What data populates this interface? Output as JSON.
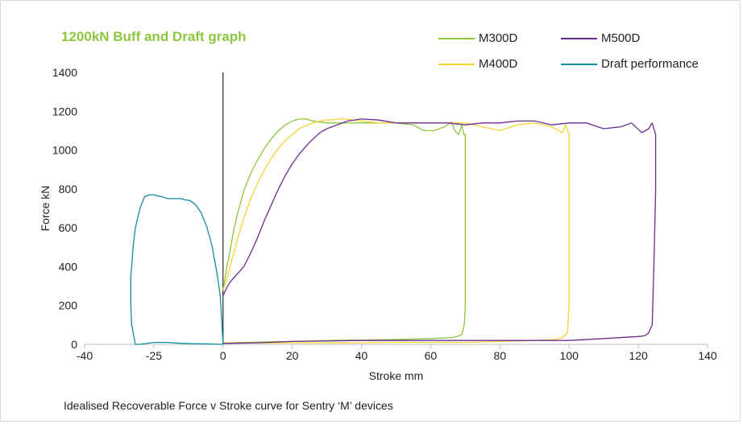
{
  "chart_data": {
    "type": "line",
    "title": "1200kN Buff and Draft graph",
    "caption": "Idealised Recoverable Force v Stroke curve for Sentry ‘M’ devices",
    "xlabel": "Stroke mm",
    "ylabel": "Force kN",
    "xlim": [
      -40,
      140
    ],
    "ylim": [
      0,
      1400
    ],
    "x_ticks": [
      -40,
      -25,
      0,
      20,
      40,
      60,
      80,
      100,
      120,
      140
    ],
    "y_ticks": [
      0,
      200,
      400,
      600,
      800,
      1000,
      1200,
      1400
    ],
    "grid": false,
    "legend_position": "top-right",
    "series": [
      {
        "name": "M300D",
        "color": "#8cc63e",
        "x": [
          0,
          0.5,
          1,
          2,
          3,
          4,
          6,
          8,
          10,
          12,
          14,
          16,
          18,
          20,
          22,
          24,
          26,
          30,
          35,
          40,
          45,
          50,
          55,
          58,
          61,
          64,
          66,
          67,
          68,
          69,
          69.3,
          69.6,
          70,
          70,
          70,
          69.7,
          69,
          67.5,
          66,
          60,
          50,
          40,
          30,
          20,
          10,
          5,
          1,
          0
        ],
        "y": [
          280,
          330,
          390,
          480,
          580,
          660,
          790,
          880,
          950,
          1010,
          1060,
          1100,
          1130,
          1150,
          1160,
          1160,
          1150,
          1140,
          1140,
          1140,
          1140,
          1140,
          1130,
          1100,
          1100,
          1120,
          1145,
          1100,
          1080,
          1130,
          1100,
          1080,
          1080,
          800,
          200,
          100,
          50,
          40,
          35,
          30,
          25,
          22,
          20,
          15,
          12,
          10,
          8,
          8
        ]
      },
      {
        "name": "M400D",
        "color": "#f5d234",
        "x": [
          0,
          1,
          2,
          4,
          6,
          8,
          10,
          12,
          14,
          16,
          18,
          20,
          22,
          25,
          28,
          30,
          35,
          40,
          45,
          50,
          55,
          60,
          65,
          70,
          75,
          80,
          85,
          90,
          95,
          98,
          99,
          100,
          100,
          100,
          99.5,
          98,
          96,
          90,
          80,
          70,
          60,
          50,
          40,
          30,
          20,
          10,
          5,
          1,
          0
        ],
        "y": [
          280,
          330,
          400,
          530,
          650,
          750,
          830,
          900,
          960,
          1010,
          1050,
          1080,
          1110,
          1135,
          1150,
          1155,
          1160,
          1150,
          1140,
          1140,
          1140,
          1140,
          1140,
          1140,
          1120,
          1100,
          1130,
          1140,
          1120,
          1090,
          1130,
          1080,
          800,
          200,
          60,
          35,
          25,
          20,
          15,
          10,
          10,
          10,
          8,
          8,
          8,
          8,
          8,
          8,
          8
        ]
      },
      {
        "name": "M500D",
        "color": "#6b2c91",
        "x": [
          0,
          1,
          2,
          4,
          6,
          8,
          10,
          12,
          14,
          16,
          18,
          20,
          22,
          25,
          28,
          30,
          33,
          36,
          40,
          45,
          50,
          55,
          60,
          65,
          70,
          75,
          80,
          85,
          90,
          95,
          100,
          105,
          110,
          115,
          118,
          121,
          123,
          124,
          125,
          125,
          125,
          124.5,
          124,
          123,
          122,
          120,
          110,
          100,
          80,
          60,
          40,
          20,
          10,
          0
        ],
        "y": [
          250,
          290,
          320,
          360,
          400,
          470,
          550,
          640,
          720,
          800,
          870,
          930,
          980,
          1040,
          1090,
          1110,
          1130,
          1150,
          1160,
          1155,
          1140,
          1140,
          1140,
          1140,
          1130,
          1140,
          1140,
          1150,
          1150,
          1130,
          1140,
          1140,
          1110,
          1120,
          1140,
          1090,
          1110,
          1140,
          1080,
          1060,
          800,
          400,
          100,
          60,
          45,
          40,
          30,
          20,
          20,
          20,
          20,
          15,
          8,
          5
        ]
      },
      {
        "name": "Draft performance",
        "color": "#138d9e",
        "x": [
          0,
          -0.3,
          -0.6,
          -1,
          -2,
          -3,
          -4,
          -5,
          -6,
          -8,
          -10,
          -12,
          -14,
          -15,
          -18,
          -20,
          -22,
          -24,
          -25,
          -26,
          -27,
          -28,
          -29,
          -29.5,
          -29.8,
          -30,
          -30,
          -29.8,
          -29,
          -28,
          -25,
          -20,
          -15,
          -10,
          -5,
          0
        ],
        "y": [
          0,
          80,
          150,
          250,
          350,
          430,
          510,
          560,
          610,
          680,
          720,
          740,
          745,
          750,
          750,
          750,
          760,
          765,
          770,
          770,
          760,
          700,
          600,
          500,
          400,
          350,
          200,
          100,
          0,
          0,
          10,
          10,
          5,
          3,
          2,
          0
        ]
      }
    ]
  }
}
